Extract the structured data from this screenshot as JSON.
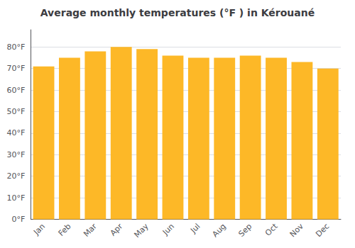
{
  "chart_data": {
    "type": "bar",
    "title": "Average monthly temperatures (°F ) in Kérouané",
    "categories": [
      "Jan",
      "Feb",
      "Mar",
      "Apr",
      "May",
      "Jun",
      "Jul",
      "Aug",
      "Sep",
      "Oct",
      "Nov",
      "Dec"
    ],
    "values": [
      71,
      75,
      78,
      80,
      79,
      76,
      75,
      75,
      76,
      75,
      73,
      70
    ],
    "color": "#FDB827",
    "ylim": [
      0,
      88
    ],
    "yticks": [
      {
        "value": 0,
        "label": "0°F"
      },
      {
        "value": 10,
        "label": "10°F"
      },
      {
        "value": 20,
        "label": "20°F"
      },
      {
        "value": 30,
        "label": "30°F"
      },
      {
        "value": 40,
        "label": "40°F"
      },
      {
        "value": 50,
        "label": "50°F"
      },
      {
        "value": 60,
        "label": "60°F"
      },
      {
        "value": 70,
        "label": "70°F"
      },
      {
        "value": 80,
        "label": "80°F"
      }
    ],
    "grid": true
  }
}
